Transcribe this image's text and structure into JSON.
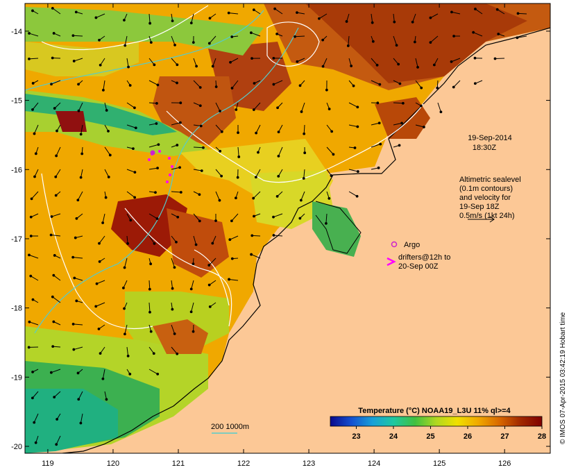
{
  "title": {
    "date": "19-Sep-2014",
    "time": "18:30Z"
  },
  "altimetry_note": [
    "Altimetric sealevel",
    "(0.1m contours)",
    "and velocity for",
    "19-Sep 18Z",
    "0.5m/s (1kt 24h)"
  ],
  "legend": {
    "argo_label": "Argo",
    "drifters_label_1": "drifters@12h to",
    "drifters_label_2": "20-Sep 00Z",
    "argo_color": "#cc22cc",
    "drifter_color": "#ff00ff"
  },
  "bathymetry_label": "200  1000m",
  "bathymetry_color": "#55cccc",
  "colorbar": {
    "title": "Temperature (°C) NOAA19_L3U 11% ql>=4",
    "ticks": [
      "23",
      "24",
      "25",
      "26",
      "27",
      "28"
    ],
    "min": 22.3,
    "max": 28.0,
    "stops": [
      "#0a0a8c",
      "#1450d0",
      "#18a0d8",
      "#20c8a0",
      "#40c040",
      "#b0d820",
      "#f0e000",
      "#f0a800",
      "#d86800",
      "#a02800",
      "#800000"
    ]
  },
  "axes": {
    "x_ticks": [
      "119",
      "120",
      "121",
      "122",
      "123",
      "124",
      "125",
      "126"
    ],
    "y_ticks": [
      "-14",
      "-15",
      "-16",
      "-17",
      "-18",
      "-19",
      "-20"
    ],
    "lon_range": [
      118.65,
      126.7
    ],
    "lat_range": [
      -20.1,
      -13.6
    ]
  },
  "credit": "© IMOS 07-Apr-2015 03:42:19 Hobart time",
  "land_color": "#fcc896"
}
